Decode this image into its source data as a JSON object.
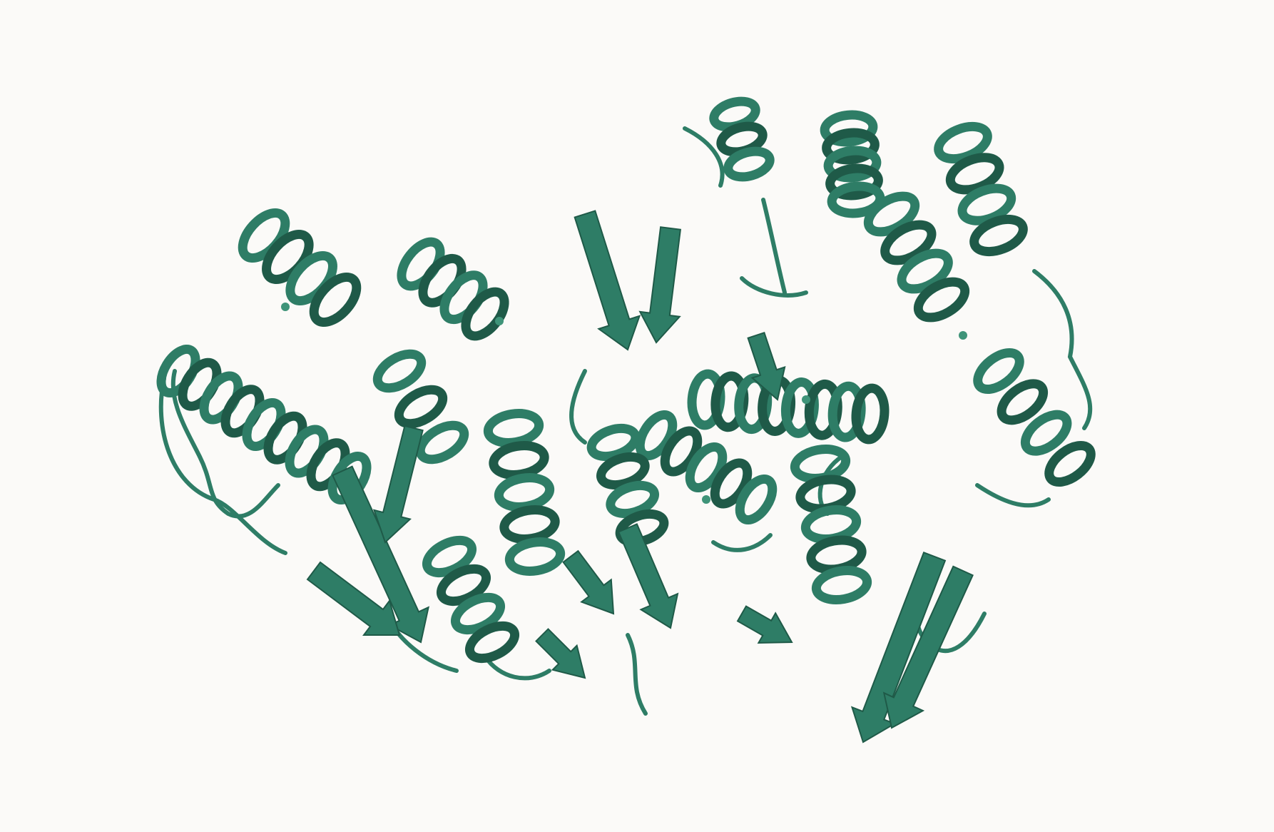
{
  "scene": {
    "subject": "protein-ribbon-structure",
    "background_color": "#fbfaf8",
    "ribbon_color": "#2e7d66",
    "ribbon_shadow_color": "#1f5a48",
    "ribbon_highlight_color": "#3f9479"
  }
}
